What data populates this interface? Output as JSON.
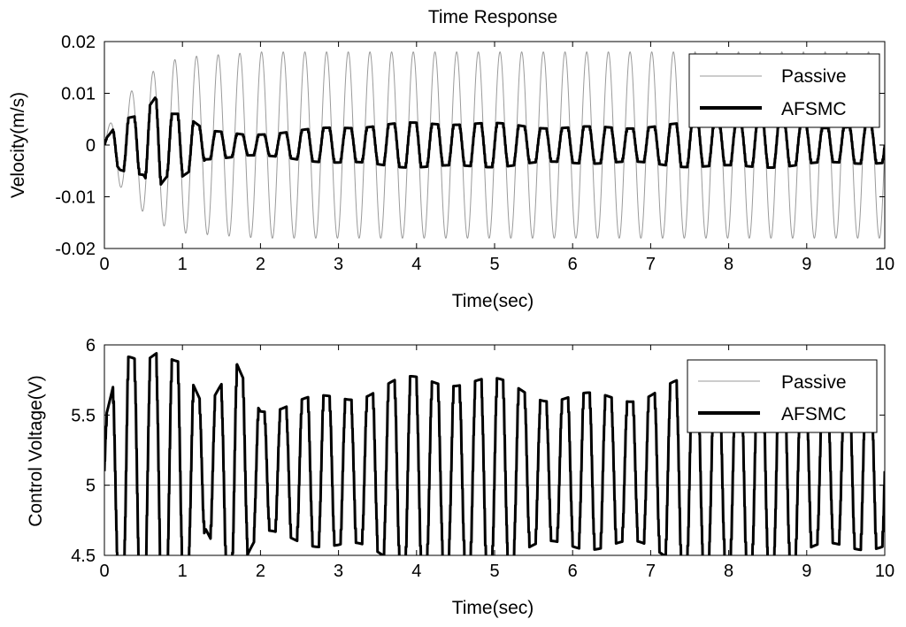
{
  "chart_data": [
    {
      "type": "line",
      "title": "Time Response",
      "xlabel": "Time(sec)",
      "ylabel": "Velocity(m/s)",
      "xlim": [
        0,
        10
      ],
      "ylim": [
        -0.02,
        0.02
      ],
      "x_ticks": [
        0,
        1,
        2,
        3,
        4,
        5,
        6,
        7,
        8,
        9,
        10
      ],
      "x_tick_labels": [
        "0",
        "1",
        "2",
        "3",
        "4",
        "5",
        "6",
        "7",
        "8",
        "9",
        "10"
      ],
      "y_ticks": [
        -0.02,
        -0.01,
        0,
        0.01,
        0.02
      ],
      "y_tick_labels": [
        "-0.02",
        "-0.01",
        "0",
        "0.01",
        "0.02"
      ],
      "grid": false,
      "legend": "top-right",
      "series": [
        {
          "name": "Passive",
          "color": "#9a9a9a",
          "style": "thin",
          "frequency_hz": 3.6,
          "envelope_t": [
            0,
            0.2,
            0.5,
            0.8,
            1.0,
            1.5,
            2.0,
            3.0,
            10.0
          ],
          "envelope_amp": [
            0.002,
            0.008,
            0.013,
            0.016,
            0.017,
            0.0175,
            0.018,
            0.018,
            0.018
          ]
        },
        {
          "name": "AFSMC",
          "color": "#000000",
          "style": "thick",
          "frequency_hz": 3.6,
          "envelope_t": [
            0,
            0.2,
            0.5,
            0.65,
            0.8,
            1.0,
            1.3,
            1.8,
            3.0,
            10.0
          ],
          "envelope_amp": [
            0.001,
            0.005,
            0.006,
            0.01,
            0.007,
            0.007,
            0.003,
            0.0025,
            0.0045,
            0.0045
          ]
        }
      ]
    },
    {
      "type": "line",
      "title": "",
      "xlabel": "Time(sec)",
      "ylabel": "Control Voltage(V)",
      "xlim": [
        0,
        10
      ],
      "ylim": [
        4.5,
        6
      ],
      "x_ticks": [
        0,
        1,
        2,
        3,
        4,
        5,
        6,
        7,
        8,
        9,
        10
      ],
      "x_tick_labels": [
        "0",
        "1",
        "2",
        "3",
        "4",
        "5",
        "6",
        "7",
        "8",
        "9",
        "10"
      ],
      "y_ticks": [
        4.5,
        5,
        5.5,
        6
      ],
      "y_tick_labels": [
        "4.5",
        "5",
        "5.5",
        "6"
      ],
      "grid": false,
      "legend": "top-right",
      "series": [
        {
          "name": "Passive",
          "color": "#9a9a9a",
          "style": "thin",
          "constant": 5
        },
        {
          "name": "AFSMC",
          "color": "#000000",
          "style": "thick",
          "frequency_hz": 3.6,
          "baseline": 5.1,
          "envelope_t": [
            0,
            0.2,
            0.5,
            0.7,
            1.0,
            1.3,
            1.7,
            2.0,
            3.0,
            10.0
          ],
          "envelope_amp": [
            0.4,
            0.85,
            0.8,
            0.95,
            0.9,
            0.45,
            0.9,
            0.6,
            0.7,
            0.7
          ]
        }
      ]
    }
  ]
}
